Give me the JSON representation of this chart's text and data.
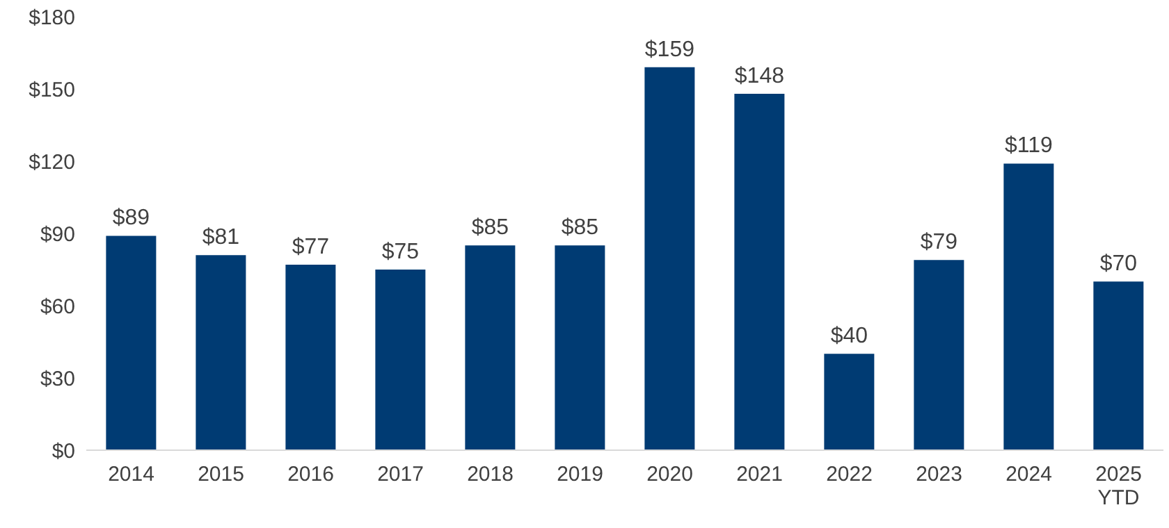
{
  "chart_data": {
    "type": "bar",
    "categories": [
      "2014",
      "2015",
      "2016",
      "2017",
      "2018",
      "2019",
      "2020",
      "2021",
      "2022",
      "2023",
      "2024",
      "2025 YTD"
    ],
    "values": [
      89,
      81,
      77,
      75,
      85,
      85,
      159,
      148,
      40,
      79,
      119,
      70
    ],
    "value_labels": [
      "$89",
      "$81",
      "$77",
      "$75",
      "$85",
      "$85",
      "$159",
      "$148",
      "$40",
      "$79",
      "$119",
      "$70"
    ],
    "color": "#003b73",
    "ylim": [
      0,
      180
    ],
    "yticks": [
      {
        "value": 0,
        "label": "$0"
      },
      {
        "value": 30,
        "label": "$30"
      },
      {
        "value": 60,
        "label": "$60"
      },
      {
        "value": 90,
        "label": "$90"
      },
      {
        "value": 120,
        "label": "$120"
      },
      {
        "value": 150,
        "label": "$150"
      },
      {
        "value": 180,
        "label": "$180"
      }
    ],
    "grid": false,
    "legend": false
  }
}
